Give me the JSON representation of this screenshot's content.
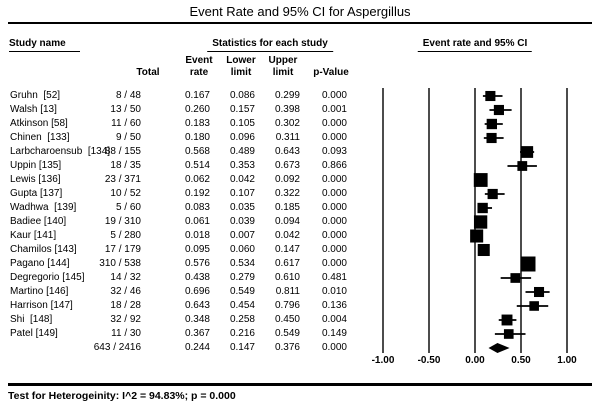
{
  "title": "Event Rate and 95% CI for Aspergillus",
  "headers": {
    "study_name": "Study name",
    "stats_group": "Statistics for each study",
    "plot_group": "Event rate and 95% CI",
    "total": "Total",
    "event_rate_l1": "Event",
    "event_rate_l2": "rate",
    "lower_l1": "Lower",
    "lower_l2": "limit",
    "upper_l1": "Upper",
    "upper_l2": "limit",
    "p_value": "p-Value"
  },
  "footer": "Test for Heterogeinity: I^2 = 94.83%; p = 0.000",
  "colors": {
    "marker": "#000000",
    "line": "#000000",
    "text": "#000000",
    "background": "#ffffff"
  },
  "chart_data": {
    "type": "forest",
    "title": "Event Rate and 95% CI for Aspergillus",
    "axis": {
      "min": -1.0,
      "max": 1.0,
      "ticks": [
        -1.0,
        -0.5,
        0.0,
        0.5,
        1.0
      ],
      "tick_labels": [
        "-1.00",
        "-0.50",
        "0.00",
        "0.50",
        "1.00"
      ]
    },
    "studies": [
      {
        "name": "Gruhn  [52]",
        "total_label": "8 / 48",
        "n": 48,
        "event_rate": 0.167,
        "lower": 0.086,
        "upper": 0.299,
        "p": "0.000"
      },
      {
        "name": "Walsh [13]",
        "total_label": "13 / 50",
        "n": 50,
        "event_rate": 0.26,
        "lower": 0.157,
        "upper": 0.398,
        "p": "0.001"
      },
      {
        "name": "Atkinson [58]",
        "total_label": "11 / 60",
        "n": 60,
        "event_rate": 0.183,
        "lower": 0.105,
        "upper": 0.302,
        "p": "0.000"
      },
      {
        "name": "Chinen  [133]",
        "total_label": "9 / 50",
        "n": 50,
        "event_rate": 0.18,
        "lower": 0.096,
        "upper": 0.311,
        "p": "0.000"
      },
      {
        "name": "Larbcharoensub  [134]",
        "total_label": "88 / 155",
        "n": 155,
        "event_rate": 0.568,
        "lower": 0.489,
        "upper": 0.643,
        "p": "0.093"
      },
      {
        "name": "Uppin [135]",
        "total_label": "18 / 35",
        "n": 35,
        "event_rate": 0.514,
        "lower": 0.353,
        "upper": 0.673,
        "p": "0.866"
      },
      {
        "name": "Lewis [136]",
        "total_label": "23 / 371",
        "n": 371,
        "event_rate": 0.062,
        "lower": 0.042,
        "upper": 0.092,
        "p": "0.000"
      },
      {
        "name": "Gupta [137]",
        "total_label": "10 / 52",
        "n": 52,
        "event_rate": 0.192,
        "lower": 0.107,
        "upper": 0.322,
        "p": "0.000"
      },
      {
        "name": "Wadhwa  [139]",
        "total_label": "5 / 60",
        "n": 60,
        "event_rate": 0.083,
        "lower": 0.035,
        "upper": 0.185,
        "p": "0.000"
      },
      {
        "name": "Badiee [140]",
        "total_label": "19 / 310",
        "n": 310,
        "event_rate": 0.061,
        "lower": 0.039,
        "upper": 0.094,
        "p": "0.000"
      },
      {
        "name": "Kaur [141]",
        "total_label": "5 / 280",
        "n": 280,
        "event_rate": 0.018,
        "lower": 0.007,
        "upper": 0.042,
        "p": "0.000"
      },
      {
        "name": "Chamilos [143]",
        "total_label": "17 / 179",
        "n": 179,
        "event_rate": 0.095,
        "lower": 0.06,
        "upper": 0.147,
        "p": "0.000"
      },
      {
        "name": "Pagano [144]",
        "total_label": "310 / 538",
        "n": 538,
        "event_rate": 0.576,
        "lower": 0.534,
        "upper": 0.617,
        "p": "0.000"
      },
      {
        "name": "Degregorio [145]",
        "total_label": "14 / 32",
        "n": 32,
        "event_rate": 0.438,
        "lower": 0.279,
        "upper": 0.61,
        "p": "0.481"
      },
      {
        "name": "Martino [146]",
        "total_label": "32 / 46",
        "n": 46,
        "event_rate": 0.696,
        "lower": 0.549,
        "upper": 0.811,
        "p": "0.010"
      },
      {
        "name": "Harrison [147]",
        "total_label": "18 / 28",
        "n": 28,
        "event_rate": 0.643,
        "lower": 0.454,
        "upper": 0.796,
        "p": "0.136"
      },
      {
        "name": "Shi  [148]",
        "total_label": "32 / 92",
        "n": 92,
        "event_rate": 0.348,
        "lower": 0.258,
        "upper": 0.45,
        "p": "0.004"
      },
      {
        "name": "Patel [149]",
        "total_label": "11 / 30",
        "n": 30,
        "event_rate": 0.367,
        "lower": 0.216,
        "upper": 0.549,
        "p": "0.149"
      }
    ],
    "summary": {
      "name": "",
      "total_label": "643 / 2416",
      "event_rate": 0.244,
      "lower": 0.147,
      "upper": 0.376,
      "p": "0.000"
    },
    "heterogeneity": {
      "i_squared": "94.83%",
      "p": "0.000"
    }
  }
}
